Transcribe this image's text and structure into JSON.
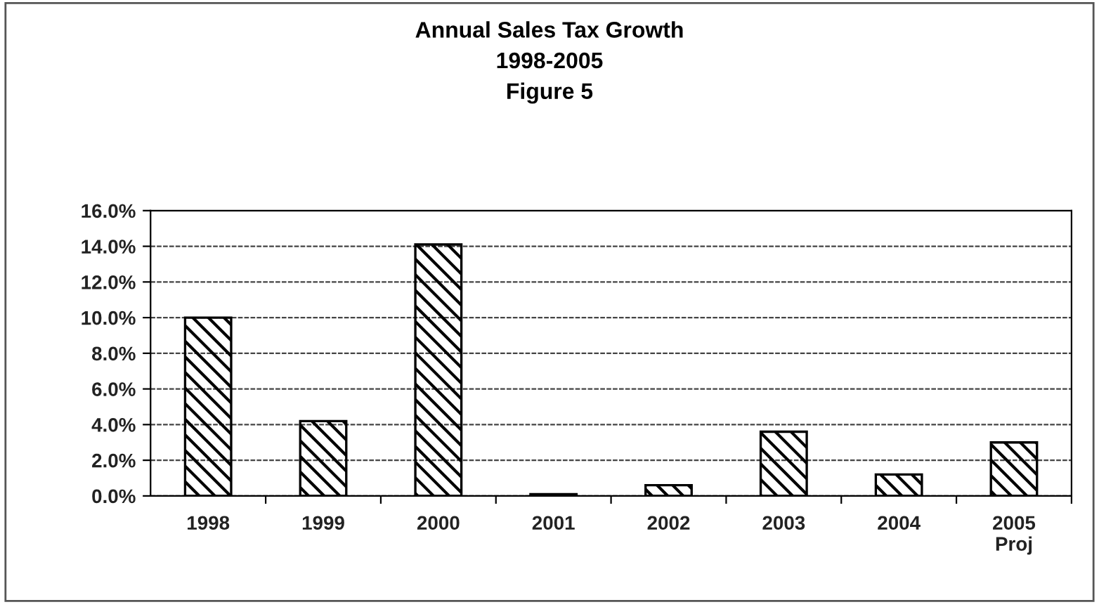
{
  "chart_data": {
    "type": "bar",
    "title": "Annual Sales Tax Growth\n1998-2005\nFigure 5",
    "categories": [
      "1998",
      "1999",
      "2000",
      "2001",
      "2002",
      "2003",
      "2004",
      "2005\nProj"
    ],
    "values": [
      10.0,
      4.2,
      14.1,
      0.1,
      0.6,
      3.6,
      1.2,
      3.0
    ],
    "color": "#000000",
    "ylim": [
      0,
      16
    ],
    "yticks": [
      {
        "value": 0,
        "label": "0.0%"
      },
      {
        "value": 2,
        "label": "2.0%"
      },
      {
        "value": 4,
        "label": "4.0%"
      },
      {
        "value": 6,
        "label": "6.0%"
      },
      {
        "value": 8,
        "label": "8.0%"
      },
      {
        "value": 10,
        "label": "10.0%"
      },
      {
        "value": 12,
        "label": "12.0%"
      },
      {
        "value": 14,
        "label": "14.0%"
      },
      {
        "value": 16,
        "label": "16.0%"
      }
    ],
    "grid": "y"
  }
}
